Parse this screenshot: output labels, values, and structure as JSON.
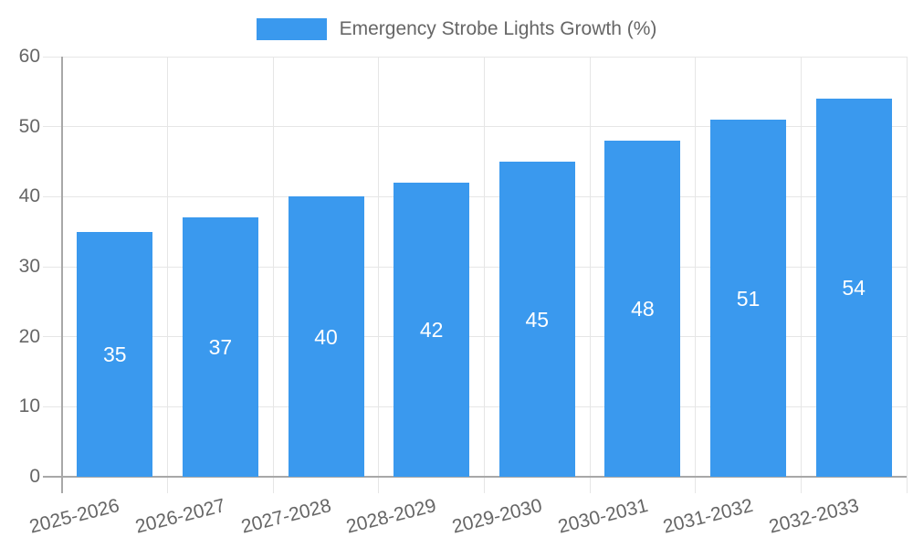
{
  "legend": {
    "position": "top"
  },
  "chart_data": {
    "type": "bar",
    "title": "Emergency Strobe Lights Growth (%)",
    "series": [
      {
        "name": "Emergency Strobe Lights Growth (%)",
        "values": [
          35,
          37,
          40,
          42,
          45,
          48,
          51,
          54
        ]
      }
    ],
    "categories": [
      "2025-2026",
      "2026-2027",
      "2027-2028",
      "2028-2029",
      "2029-2030",
      "2030-2031",
      "2031-2032",
      "2032-2033"
    ],
    "values": [
      35,
      37,
      40,
      42,
      45,
      48,
      51,
      54
    ],
    "xlabel": "",
    "ylabel": "",
    "ylim": [
      0,
      60
    ],
    "yticks": [
      0,
      10,
      20,
      30,
      40,
      50,
      60
    ],
    "grid": true,
    "legend_position": "top",
    "bar_value_labels_shown": true,
    "x_tick_rotation_deg": -14,
    "colors": {
      "bar": "#3A99EE",
      "bar_label": "#FFFFFF",
      "grid": "#E6E6E6",
      "axis": "#A8A8A8",
      "tick_text": "#666666",
      "legend_text": "#666666",
      "background": "#FFFFFF"
    }
  }
}
